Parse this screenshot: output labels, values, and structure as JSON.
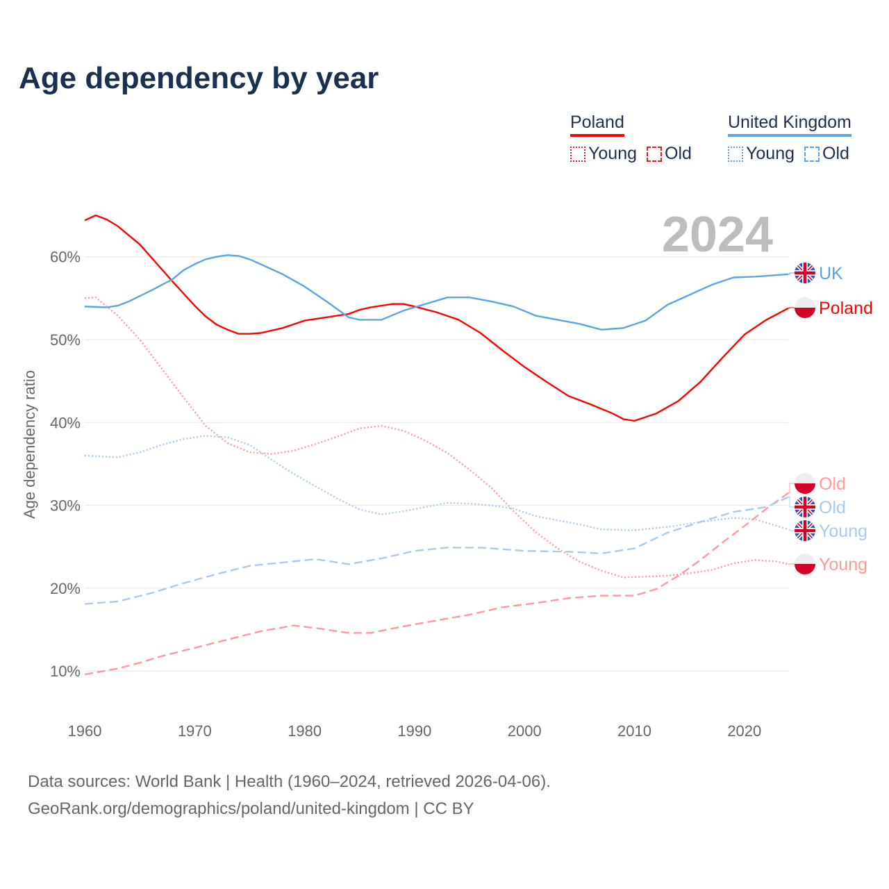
{
  "title": "Age dependency by year",
  "legend": {
    "poland": {
      "label": "Poland",
      "young": "Young",
      "old": "Old"
    },
    "uk": {
      "label": "United Kingdom",
      "young": "Young",
      "old": "Old"
    }
  },
  "colors": {
    "poland": "#ff0000",
    "poland_light": "#ff9a9a",
    "uk": "#5ba4e6",
    "uk_light": "#a7cbf0",
    "grid": "#e6e6e6",
    "axis_text": "#666666",
    "year_watermark": "#bdbdbd"
  },
  "chart_data": {
    "type": "line",
    "title": "Age dependency by year",
    "ylabel": "Age dependency ratio",
    "xlabel": "",
    "year_label": "2024",
    "xlim": [
      1960,
      2024
    ],
    "ylim": [
      5,
      67
    ],
    "x_ticks": [
      1960,
      1970,
      1980,
      1990,
      2000,
      2010,
      2020
    ],
    "y_ticks": [
      10,
      20,
      30,
      40,
      50,
      60
    ],
    "y_tick_labels": [
      "10%",
      "20%",
      "30%",
      "40%",
      "50%",
      "60%"
    ],
    "grid": true,
    "legend_position": "top-right",
    "series": [
      {
        "name": "Poland",
        "end_label": "Poland",
        "country": "poland",
        "style": "solid",
        "color_key": "poland",
        "points": [
          [
            1960,
            64.4
          ],
          [
            1961,
            65.0
          ],
          [
            1962,
            64.5
          ],
          [
            1963,
            63.7
          ],
          [
            1964,
            62.6
          ],
          [
            1965,
            61.5
          ],
          [
            1966,
            60.0
          ],
          [
            1967,
            58.5
          ],
          [
            1968,
            57.0
          ],
          [
            1970,
            54.1
          ],
          [
            1971,
            52.8
          ],
          [
            1972,
            51.8
          ],
          [
            1973,
            51.2
          ],
          [
            1974,
            50.7
          ],
          [
            1975,
            50.7
          ],
          [
            1976,
            50.8
          ],
          [
            1978,
            51.4
          ],
          [
            1980,
            52.3
          ],
          [
            1982,
            52.7
          ],
          [
            1984,
            53.1
          ],
          [
            1985,
            53.6
          ],
          [
            1986,
            53.9
          ],
          [
            1988,
            54.3
          ],
          [
            1989,
            54.3
          ],
          [
            1990,
            54.0
          ],
          [
            1992,
            53.3
          ],
          [
            1994,
            52.4
          ],
          [
            1996,
            50.8
          ],
          [
            1998,
            48.7
          ],
          [
            2000,
            46.7
          ],
          [
            2002,
            44.9
          ],
          [
            2004,
            43.2
          ],
          [
            2006,
            42.2
          ],
          [
            2008,
            41.1
          ],
          [
            2009,
            40.4
          ],
          [
            2010,
            40.2
          ],
          [
            2012,
            41.1
          ],
          [
            2014,
            42.6
          ],
          [
            2016,
            44.9
          ],
          [
            2018,
            47.8
          ],
          [
            2020,
            50.6
          ],
          [
            2022,
            52.4
          ],
          [
            2024,
            53.8
          ]
        ]
      },
      {
        "name": "United Kingdom",
        "end_label": "UK",
        "country": "uk",
        "style": "solid",
        "color_key": "uk",
        "points": [
          [
            1960,
            54.0
          ],
          [
            1962,
            53.9
          ],
          [
            1963,
            54.1
          ],
          [
            1964,
            54.6
          ],
          [
            1966,
            55.9
          ],
          [
            1968,
            57.3
          ],
          [
            1969,
            58.4
          ],
          [
            1970,
            59.1
          ],
          [
            1971,
            59.7
          ],
          [
            1972,
            60.0
          ],
          [
            1973,
            60.2
          ],
          [
            1974,
            60.1
          ],
          [
            1975,
            59.7
          ],
          [
            1976,
            59.1
          ],
          [
            1978,
            57.9
          ],
          [
            1980,
            56.4
          ],
          [
            1982,
            54.6
          ],
          [
            1984,
            52.7
          ],
          [
            1985,
            52.4
          ],
          [
            1987,
            52.4
          ],
          [
            1989,
            53.5
          ],
          [
            1991,
            54.3
          ],
          [
            1993,
            55.1
          ],
          [
            1995,
            55.1
          ],
          [
            1997,
            54.6
          ],
          [
            1999,
            54.0
          ],
          [
            2001,
            52.9
          ],
          [
            2003,
            52.4
          ],
          [
            2005,
            51.9
          ],
          [
            2007,
            51.2
          ],
          [
            2009,
            51.4
          ],
          [
            2011,
            52.3
          ],
          [
            2013,
            54.2
          ],
          [
            2015,
            55.4
          ],
          [
            2017,
            56.6
          ],
          [
            2019,
            57.5
          ],
          [
            2021,
            57.6
          ],
          [
            2024,
            57.9
          ]
        ]
      },
      {
        "name": "Poland Young",
        "end_label": "Young",
        "country": "poland",
        "style": "dotted",
        "color_key": "poland_light",
        "points": [
          [
            1960,
            55.0
          ],
          [
            1961,
            55.1
          ],
          [
            1963,
            52.9
          ],
          [
            1965,
            50.0
          ],
          [
            1967,
            46.5
          ],
          [
            1969,
            43.0
          ],
          [
            1971,
            39.6
          ],
          [
            1973,
            37.5
          ],
          [
            1975,
            36.4
          ],
          [
            1977,
            36.2
          ],
          [
            1979,
            36.6
          ],
          [
            1981,
            37.4
          ],
          [
            1983,
            38.3
          ],
          [
            1985,
            39.3
          ],
          [
            1987,
            39.6
          ],
          [
            1989,
            39.0
          ],
          [
            1991,
            37.8
          ],
          [
            1993,
            36.3
          ],
          [
            1995,
            34.3
          ],
          [
            1997,
            32.1
          ],
          [
            1999,
            29.3
          ],
          [
            2001,
            26.8
          ],
          [
            2003,
            24.8
          ],
          [
            2005,
            23.2
          ],
          [
            2007,
            22.1
          ],
          [
            2009,
            21.3
          ],
          [
            2011,
            21.4
          ],
          [
            2013,
            21.5
          ],
          [
            2015,
            21.8
          ],
          [
            2017,
            22.2
          ],
          [
            2019,
            23.0
          ],
          [
            2021,
            23.4
          ],
          [
            2023,
            23.2
          ],
          [
            2024,
            22.9
          ]
        ]
      },
      {
        "name": "United Kingdom Young",
        "end_label": "Young",
        "country": "uk",
        "style": "dotted",
        "color_key": "uk_light",
        "points": [
          [
            1960,
            36.0
          ],
          [
            1963,
            35.8
          ],
          [
            1965,
            36.4
          ],
          [
            1967,
            37.3
          ],
          [
            1969,
            38.0
          ],
          [
            1971,
            38.4
          ],
          [
            1973,
            38.2
          ],
          [
            1975,
            37.3
          ],
          [
            1977,
            35.5
          ],
          [
            1979,
            33.8
          ],
          [
            1981,
            32.3
          ],
          [
            1983,
            30.8
          ],
          [
            1985,
            29.5
          ],
          [
            1987,
            28.9
          ],
          [
            1989,
            29.3
          ],
          [
            1991,
            29.8
          ],
          [
            1993,
            30.3
          ],
          [
            1995,
            30.2
          ],
          [
            1997,
            30.0
          ],
          [
            1999,
            29.6
          ],
          [
            2001,
            28.7
          ],
          [
            2003,
            28.2
          ],
          [
            2005,
            27.7
          ],
          [
            2007,
            27.1
          ],
          [
            2010,
            27.0
          ],
          [
            2013,
            27.4
          ],
          [
            2016,
            28.0
          ],
          [
            2019,
            28.5
          ],
          [
            2021,
            28.3
          ],
          [
            2024,
            27.1
          ]
        ]
      },
      {
        "name": "Poland Old",
        "end_label": "Old",
        "country": "poland",
        "style": "dashed",
        "color_key": "poland_light",
        "points": [
          [
            1960,
            9.6
          ],
          [
            1963,
            10.3
          ],
          [
            1965,
            11.0
          ],
          [
            1967,
            11.8
          ],
          [
            1970,
            12.8
          ],
          [
            1973,
            13.8
          ],
          [
            1976,
            14.8
          ],
          [
            1979,
            15.5
          ],
          [
            1981,
            15.2
          ],
          [
            1984,
            14.6
          ],
          [
            1986,
            14.6
          ],
          [
            1989,
            15.4
          ],
          [
            1992,
            16.1
          ],
          [
            1995,
            16.8
          ],
          [
            1998,
            17.7
          ],
          [
            2001,
            18.2
          ],
          [
            2004,
            18.8
          ],
          [
            2007,
            19.1
          ],
          [
            2010,
            19.1
          ],
          [
            2012,
            19.9
          ],
          [
            2014,
            21.5
          ],
          [
            2016,
            23.4
          ],
          [
            2018,
            25.5
          ],
          [
            2020,
            27.5
          ],
          [
            2022,
            29.6
          ],
          [
            2024,
            31.5
          ]
        ]
      },
      {
        "name": "United Kingdom Old",
        "end_label": "Old",
        "country": "uk",
        "style": "dashed",
        "color_key": "uk_light",
        "points": [
          [
            1960,
            18.1
          ],
          [
            1963,
            18.4
          ],
          [
            1966,
            19.4
          ],
          [
            1969,
            20.6
          ],
          [
            1972,
            21.7
          ],
          [
            1975,
            22.7
          ],
          [
            1978,
            23.1
          ],
          [
            1981,
            23.5
          ],
          [
            1984,
            22.9
          ],
          [
            1987,
            23.6
          ],
          [
            1990,
            24.5
          ],
          [
            1993,
            24.9
          ],
          [
            1996,
            24.9
          ],
          [
            2000,
            24.5
          ],
          [
            2004,
            24.4
          ],
          [
            2007,
            24.2
          ],
          [
            2010,
            24.8
          ],
          [
            2013,
            26.7
          ],
          [
            2016,
            28.0
          ],
          [
            2019,
            29.2
          ],
          [
            2022,
            29.8
          ],
          [
            2024,
            31.0
          ]
        ]
      }
    ]
  },
  "footer": {
    "line1": "Data sources: World Bank | Health (1960–2024, retrieved 2026-04-06).",
    "line2": "GeoRank.org/demographics/poland/united-kingdom | CC BY"
  }
}
